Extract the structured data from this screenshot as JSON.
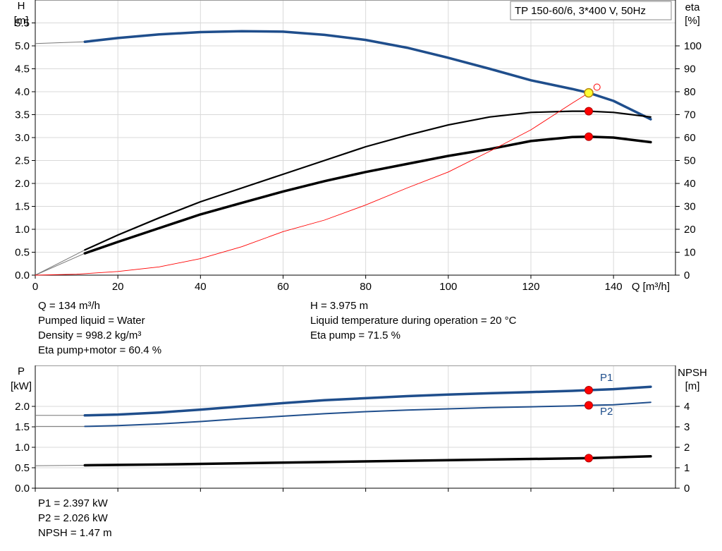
{
  "title": "TP 150-60/6, 3*400 V, 50Hz",
  "colors": {
    "blue": "#1f4e8c",
    "black": "#000000",
    "red": "#ff0000",
    "grid": "#d9d9d9",
    "yellow": "#ffff33"
  },
  "chart_data": [
    {
      "type": "line",
      "title": "TP 150-60/6, 3*400 V, 50Hz",
      "xlabel": "Q [m³/h]",
      "ylabel": "H\n[m]",
      "y2label": "eta\n[%]",
      "xlim": [
        0,
        155
      ],
      "ylim": [
        0,
        6.0
      ],
      "y2lim": [
        0,
        120
      ],
      "xticks": [
        0,
        20,
        40,
        60,
        80,
        100,
        120,
        140
      ],
      "yticks": [
        0.0,
        0.5,
        1.0,
        1.5,
        2.0,
        2.5,
        3.0,
        3.5,
        4.0,
        4.5,
        5.0,
        5.5
      ],
      "y2ticks": [
        0,
        10,
        20,
        30,
        40,
        50,
        60,
        70,
        80,
        90,
        100
      ],
      "grid": true,
      "series": [
        {
          "key": "H",
          "axis": "left",
          "color": "#1f4e8c",
          "width": 3.5,
          "points": [
            [
              12,
              5.09
            ],
            [
              20,
              5.17
            ],
            [
              30,
              5.25
            ],
            [
              40,
              5.3
            ],
            [
              50,
              5.32
            ],
            [
              60,
              5.31
            ],
            [
              70,
              5.24
            ],
            [
              80,
              5.13
            ],
            [
              90,
              4.96
            ],
            [
              100,
              4.74
            ],
            [
              110,
              4.5
            ],
            [
              120,
              4.25
            ],
            [
              130,
              4.06
            ],
            [
              134,
              3.975
            ],
            [
              140,
              3.8
            ],
            [
              149,
              3.4
            ]
          ],
          "ext": [
            [
              0,
              5.05
            ],
            [
              12,
              5.09
            ]
          ]
        },
        {
          "key": "eta_pump",
          "axis": "right",
          "color": "#000000",
          "width": 2.2,
          "points": [
            [
              12,
              11.0
            ],
            [
              20,
              17.5
            ],
            [
              30,
              25.0
            ],
            [
              40,
              32.0
            ],
            [
              50,
              38.0
            ],
            [
              60,
              44.0
            ],
            [
              70,
              50.0
            ],
            [
              80,
              56.0
            ],
            [
              90,
              61.0
            ],
            [
              100,
              65.5
            ],
            [
              110,
              69.0
            ],
            [
              120,
              71.0
            ],
            [
              130,
              71.5
            ],
            [
              134,
              71.5
            ],
            [
              140,
              71.0
            ],
            [
              149,
              69.0
            ]
          ],
          "ext": [
            [
              0,
              0
            ],
            [
              12,
              11.0
            ]
          ]
        },
        {
          "key": "eta_total",
          "axis": "right",
          "color": "#000000",
          "width": 3.5,
          "points": [
            [
              12,
              9.5
            ],
            [
              20,
              14.5
            ],
            [
              30,
              20.5
            ],
            [
              40,
              26.5
            ],
            [
              50,
              31.5
            ],
            [
              60,
              36.5
            ],
            [
              70,
              41.0
            ],
            [
              80,
              45.0
            ],
            [
              90,
              48.5
            ],
            [
              100,
              52.0
            ],
            [
              110,
              55.0
            ],
            [
              120,
              58.5
            ],
            [
              130,
              60.2
            ],
            [
              134,
              60.4
            ],
            [
              140,
              60.0
            ],
            [
              149,
              58.0
            ]
          ],
          "ext": [
            [
              0,
              0
            ],
            [
              12,
              9.5
            ]
          ]
        },
        {
          "key": "system",
          "axis": "left",
          "color": "#ff0000",
          "width": 0.9,
          "points": [
            [
              0,
              0
            ],
            [
              10,
              0.02
            ],
            [
              20,
              0.08
            ],
            [
              30,
              0.18
            ],
            [
              40,
              0.36
            ],
            [
              50,
              0.62
            ],
            [
              60,
              0.95
            ],
            [
              70,
              1.2
            ],
            [
              80,
              1.53
            ],
            [
              90,
              1.9
            ],
            [
              100,
              2.25
            ],
            [
              110,
              2.7
            ],
            [
              120,
              3.17
            ],
            [
              130,
              3.75
            ],
            [
              134,
              3.975
            ]
          ]
        }
      ],
      "markers": [
        {
          "axis": "left",
          "x": 134,
          "y": 3.975,
          "style": "yellow"
        },
        {
          "axis": "right",
          "x": 134,
          "y": 71.5,
          "style": "red"
        },
        {
          "axis": "right",
          "x": 134,
          "y": 60.4,
          "style": "red"
        },
        {
          "axis": "left",
          "x": 136,
          "y": 4.1,
          "style": "hollow"
        }
      ]
    },
    {
      "type": "line",
      "xlabel": "",
      "ylabel": "P\n[kW]",
      "y2label": "NPSH\n[m]",
      "xlim": [
        0,
        155
      ],
      "ylim": [
        0,
        3.0
      ],
      "y2lim": [
        0,
        6.0
      ],
      "yticks": [
        0.0,
        0.5,
        1.0,
        1.5,
        2.0
      ],
      "y2ticks": [
        0,
        1,
        2,
        3,
        4
      ],
      "grid": true,
      "series": [
        {
          "key": "P1",
          "name": "P1",
          "axis": "left",
          "color": "#1f4e8c",
          "width": 3.5,
          "points": [
            [
              12,
              1.78
            ],
            [
              20,
              1.8
            ],
            [
              30,
              1.85
            ],
            [
              40,
              1.92
            ],
            [
              50,
              2.0
            ],
            [
              60,
              2.08
            ],
            [
              70,
              2.15
            ],
            [
              80,
              2.2
            ],
            [
              90,
              2.25
            ],
            [
              100,
              2.29
            ],
            [
              110,
              2.32
            ],
            [
              120,
              2.35
            ],
            [
              130,
              2.38
            ],
            [
              134,
              2.397
            ],
            [
              140,
              2.42
            ],
            [
              149,
              2.48
            ]
          ],
          "ext": [
            [
              0,
              1.78
            ],
            [
              12,
              1.78
            ]
          ]
        },
        {
          "key": "P2",
          "name": "P2",
          "axis": "left",
          "color": "#1f4e8c",
          "width": 2.0,
          "points": [
            [
              12,
              1.51
            ],
            [
              20,
              1.53
            ],
            [
              30,
              1.57
            ],
            [
              40,
              1.63
            ],
            [
              50,
              1.7
            ],
            [
              60,
              1.76
            ],
            [
              70,
              1.82
            ],
            [
              80,
              1.87
            ],
            [
              90,
              1.91
            ],
            [
              100,
              1.94
            ],
            [
              110,
              1.97
            ],
            [
              120,
              1.99
            ],
            [
              130,
              2.01
            ],
            [
              134,
              2.026
            ],
            [
              140,
              2.04
            ],
            [
              149,
              2.1
            ]
          ],
          "ext": [
            [
              0,
              1.51
            ],
            [
              12,
              1.51
            ]
          ]
        },
        {
          "key": "NPSH",
          "axis": "right",
          "color": "#000000",
          "width": 3.5,
          "points": [
            [
              12,
              1.12
            ],
            [
              30,
              1.16
            ],
            [
              50,
              1.22
            ],
            [
              70,
              1.28
            ],
            [
              90,
              1.34
            ],
            [
              110,
              1.4
            ],
            [
              134,
              1.47
            ],
            [
              149,
              1.56
            ]
          ],
          "ext": [
            [
              0,
              1.1
            ],
            [
              12,
              1.12
            ]
          ]
        }
      ],
      "markers": [
        {
          "axis": "left",
          "x": 134,
          "y": 2.397,
          "style": "red"
        },
        {
          "axis": "left",
          "x": 134,
          "y": 2.026,
          "style": "red"
        },
        {
          "axis": "right",
          "x": 134,
          "y": 1.47,
          "style": "red"
        }
      ]
    }
  ],
  "info": {
    "q": "Q = 134 m³/h",
    "liquid": "Pumped liquid = Water",
    "density": "Density = 998.2 kg/m³",
    "eta_total": "Eta pump+motor = 60.4 %",
    "h": "H = 3.975 m",
    "temp": "Liquid temperature during operation = 20 °C",
    "eta_pump": "Eta pump = 71.5 %",
    "p1": "P1 = 2.397 kW",
    "p2": "P2 = 2.026 kW",
    "npsh": "NPSH = 1.47 m"
  }
}
